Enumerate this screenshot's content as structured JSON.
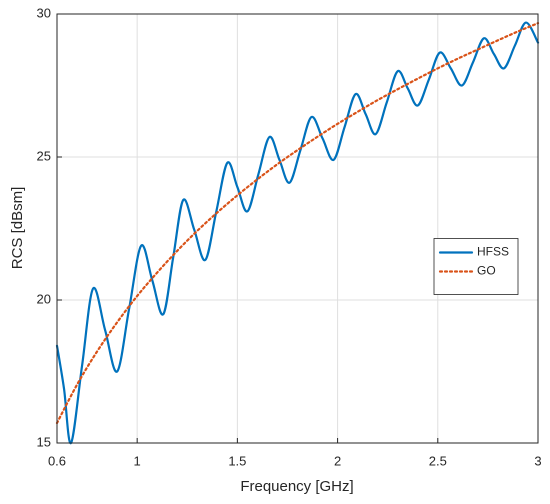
{
  "chart_data": {
    "type": "line",
    "xlabel": "Frequency [GHz]",
    "ylabel": "RCS [dBsm]",
    "xlim": [
      0.6,
      3
    ],
    "ylim": [
      15,
      30
    ],
    "xticks": [
      0.6,
      1,
      1.5,
      2,
      2.5,
      3
    ],
    "yticks": [
      15,
      20,
      25,
      30
    ],
    "grid": true,
    "legend": "east",
    "series": [
      {
        "name": "HFSS",
        "color": "#0072bd",
        "style": "solid",
        "x": [
          0.6,
          0.635,
          0.67,
          0.725,
          0.78,
          0.84,
          0.9,
          0.96,
          1.02,
          1.075,
          1.13,
          1.18,
          1.23,
          1.285,
          1.34,
          1.395,
          1.45,
          1.5,
          1.55,
          1.605,
          1.66,
          1.71,
          1.76,
          1.815,
          1.87,
          1.925,
          1.98,
          2.035,
          2.09,
          2.14,
          2.19,
          2.245,
          2.3,
          2.35,
          2.4,
          2.455,
          2.51,
          2.565,
          2.62,
          2.675,
          2.73,
          2.78,
          2.83,
          2.885,
          2.94,
          3.0
        ],
        "values": [
          18.4,
          16.9,
          15.0,
          17.7,
          20.4,
          18.95,
          17.5,
          19.7,
          21.9,
          20.7,
          19.5,
          21.5,
          23.5,
          22.45,
          21.4,
          23.1,
          24.8,
          23.95,
          23.1,
          24.4,
          25.7,
          24.9,
          24.1,
          25.25,
          26.4,
          25.65,
          24.9,
          26.05,
          27.2,
          26.5,
          25.8,
          26.9,
          28.0,
          27.4,
          26.8,
          27.7,
          28.65,
          28.1,
          27.5,
          28.3,
          29.15,
          28.6,
          28.1,
          28.9,
          29.7,
          29.0
        ]
      },
      {
        "name": "GO",
        "color": "#d95319",
        "style": "dotted",
        "x": [
          0.6,
          0.7,
          0.8,
          0.9,
          1.0,
          1.1,
          1.2,
          1.3,
          1.4,
          1.5,
          1.6,
          1.7,
          1.8,
          1.9,
          2.0,
          2.1,
          2.2,
          2.3,
          2.4,
          2.5,
          2.6,
          2.7,
          2.8,
          2.9,
          3.0
        ],
        "values": [
          15.7,
          17.04,
          18.2,
          19.22,
          20.14,
          20.96,
          21.72,
          22.42,
          23.06,
          23.66,
          24.22,
          24.75,
          25.24,
          25.71,
          26.16,
          26.58,
          26.99,
          27.37,
          27.74,
          28.1,
          28.44,
          28.76,
          29.08,
          29.39,
          29.68
        ]
      }
    ]
  }
}
